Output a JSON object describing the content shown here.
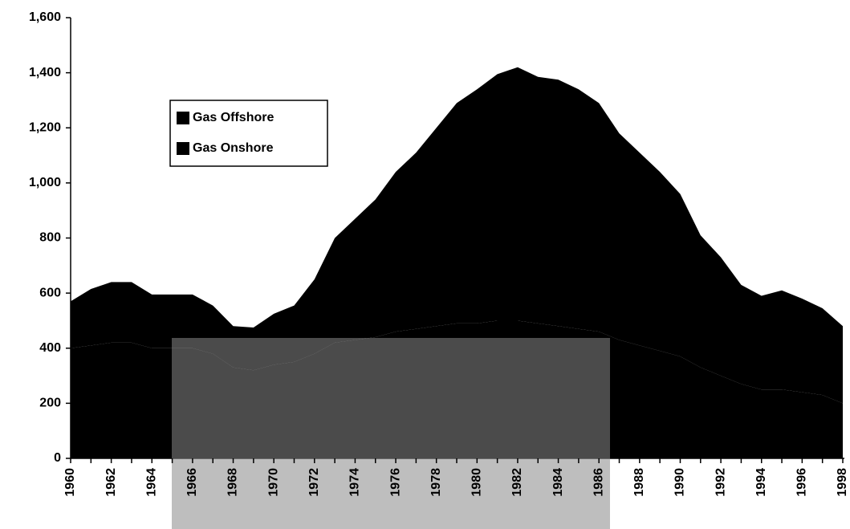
{
  "chart_data": {
    "type": "stacked_area",
    "categories": [
      "1960",
      null,
      "1962",
      null,
      "1964",
      null,
      "1966",
      null,
      "1968",
      null,
      "1970",
      null,
      "1972",
      null,
      "1974",
      null,
      "1976",
      null,
      "1978",
      null,
      "1980",
      null,
      "1982",
      null,
      "1984",
      null,
      "1986",
      null,
      "1988",
      null,
      "1990",
      null,
      "1992",
      null,
      "1994",
      null,
      "1996",
      null,
      "1998"
    ],
    "series": [
      {
        "name": "Gas Offshore",
        "color": "#000000",
        "values": [
          170,
          205,
          220,
          220,
          195,
          195,
          195,
          175,
          150,
          155,
          185,
          205,
          270,
          380,
          440,
          500,
          580,
          640,
          720,
          800,
          850,
          895,
          920,
          895,
          895,
          870,
          830,
          750,
          700,
          650,
          590,
          480,
          430,
          360,
          340,
          360,
          340,
          315,
          280
        ]
      },
      {
        "name": "Gas Onshore",
        "color": "#000000",
        "values": [
          400,
          410,
          420,
          420,
          400,
          400,
          400,
          380,
          330,
          320,
          340,
          350,
          380,
          420,
          430,
          440,
          460,
          470,
          480,
          490,
          490,
          500,
          500,
          490,
          480,
          470,
          460,
          430,
          410,
          390,
          370,
          330,
          300,
          270,
          250,
          250,
          240,
          230,
          200
        ]
      }
    ],
    "ylim": [
      0,
      1600
    ],
    "yticks": [
      0,
      200,
      400,
      600,
      800,
      {
        "value": 1000,
        "label": "1,000"
      },
      {
        "value": 1200,
        "label": "1,200"
      },
      {
        "value": 1400,
        "label": "1,400"
      },
      {
        "value": 1600,
        "label": "1,600"
      }
    ],
    "legend": "upper left"
  }
}
